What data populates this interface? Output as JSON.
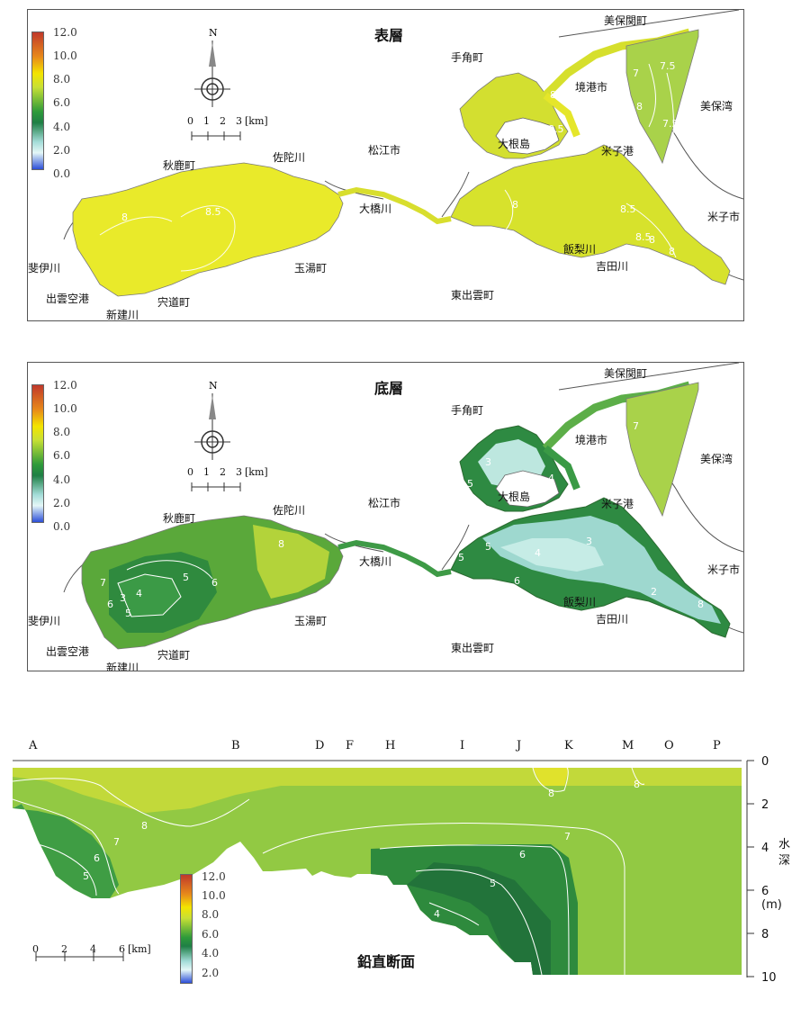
{
  "colorbar": {
    "ticks": [
      "12.0",
      "10.0",
      "8.0",
      "6.0",
      "4.0",
      "2.0",
      "0.0"
    ],
    "colors": [
      "#c0392b",
      "#f3e400",
      "#c8e035",
      "#2e9a3a",
      "#1f7f45",
      "#a3dcd8",
      "#2d4fd8"
    ]
  },
  "north_label": "N",
  "scale_map": {
    "ticks": [
      "0",
      "1",
      "2",
      "3"
    ],
    "unit": "[km]"
  },
  "scale_section": {
    "ticks": [
      "0",
      "2",
      "4",
      "6"
    ],
    "unit": "[km]"
  },
  "panels": {
    "surface": {
      "title": "表層"
    },
    "bottom": {
      "title": "底層"
    },
    "section": {
      "title": "鉛直断面"
    }
  },
  "places": {
    "mihonoseki": "美保関町",
    "tesumi": "手角町",
    "sakaiminato": "境港市",
    "mihowan": "美保湾",
    "oneshima": "大根島",
    "yonagoko": "米子港",
    "matsue": "松江市",
    "akaika": "秋鹿町",
    "sadagawa": "佐陀川",
    "ohashigawa": "大橋川",
    "yonago": "米子市",
    "hiikawa": "斐伊川",
    "izumo_airport": "出雲空港",
    "shinkawa": "新建川",
    "shinji": "宍道町",
    "tamayu": "玉湯町",
    "higashiizumo": "東出雲町",
    "iinashigawa": "飯梨川",
    "yoshidagawa": "吉田川"
  },
  "contour_labels_surface": [
    "7",
    "7.5",
    "8",
    "7.5",
    "8.5",
    "8",
    "8",
    "8.5",
    "8.5",
    "8",
    "8.5",
    "8",
    "8"
  ],
  "contour_labels_bottom": [
    "7",
    "3",
    "5",
    "4",
    "5",
    "3",
    "4",
    "5",
    "2",
    "7",
    "8",
    "6",
    "5",
    "4",
    "3",
    "5",
    "6",
    "8",
    "5",
    "6"
  ],
  "section": {
    "stations": [
      "A",
      "B",
      "D",
      "F",
      "H",
      "I",
      "J",
      "K",
      "M",
      "O",
      "P"
    ],
    "depth_ticks": [
      "0",
      "2",
      "4",
      "6 (m)",
      "8",
      "10"
    ],
    "depth_axis_label": [
      "水",
      "深"
    ],
    "contour_labels": [
      "8",
      "7",
      "6",
      "5",
      "8",
      "8",
      "7",
      "6",
      "5",
      "4"
    ]
  }
}
